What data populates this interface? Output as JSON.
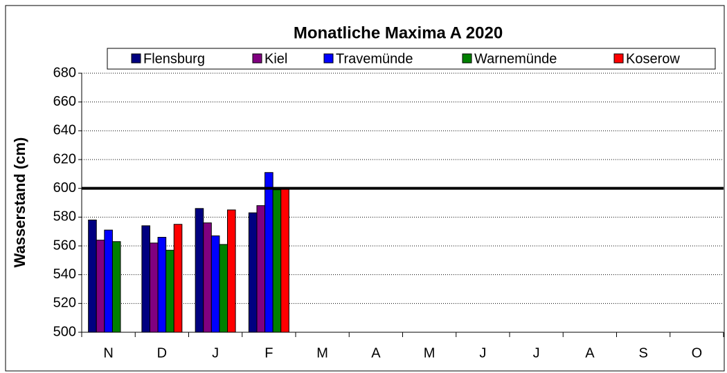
{
  "chart_data": {
    "type": "bar",
    "title": "Monatliche Maxima A 2020",
    "y_label": "Wasserstand (cm)",
    "categories": [
      "N",
      "D",
      "J",
      "F",
      "M",
      "A",
      "M",
      "J",
      "J",
      "A",
      "S",
      "O"
    ],
    "series": [
      {
        "name": "Flensburg",
        "color": "#000080",
        "values": [
          578,
          574,
          586,
          583,
          null,
          null,
          null,
          null,
          null,
          null,
          null,
          null
        ]
      },
      {
        "name": "Kiel",
        "color": "#800080",
        "values": [
          564,
          562,
          576,
          588,
          null,
          null,
          null,
          null,
          null,
          null,
          null,
          null
        ]
      },
      {
        "name": "Travemünde",
        "color": "#0000ff",
        "values": [
          571,
          566,
          567,
          611,
          null,
          null,
          null,
          null,
          null,
          null,
          null,
          null
        ]
      },
      {
        "name": "Warnemünde",
        "color": "#008000",
        "values": [
          563,
          557,
          561,
          599,
          null,
          null,
          null,
          null,
          null,
          null,
          null,
          null
        ]
      },
      {
        "name": "Koserow",
        "color": "#ff0000",
        "values": [
          null,
          575,
          585,
          600,
          null,
          null,
          null,
          null,
          null,
          null,
          null,
          null
        ]
      }
    ],
    "reference_line": 600,
    "ylim": [
      500,
      680
    ],
    "yticks": [
      500,
      520,
      540,
      560,
      580,
      600,
      620,
      640,
      660,
      680
    ],
    "grid": true
  }
}
